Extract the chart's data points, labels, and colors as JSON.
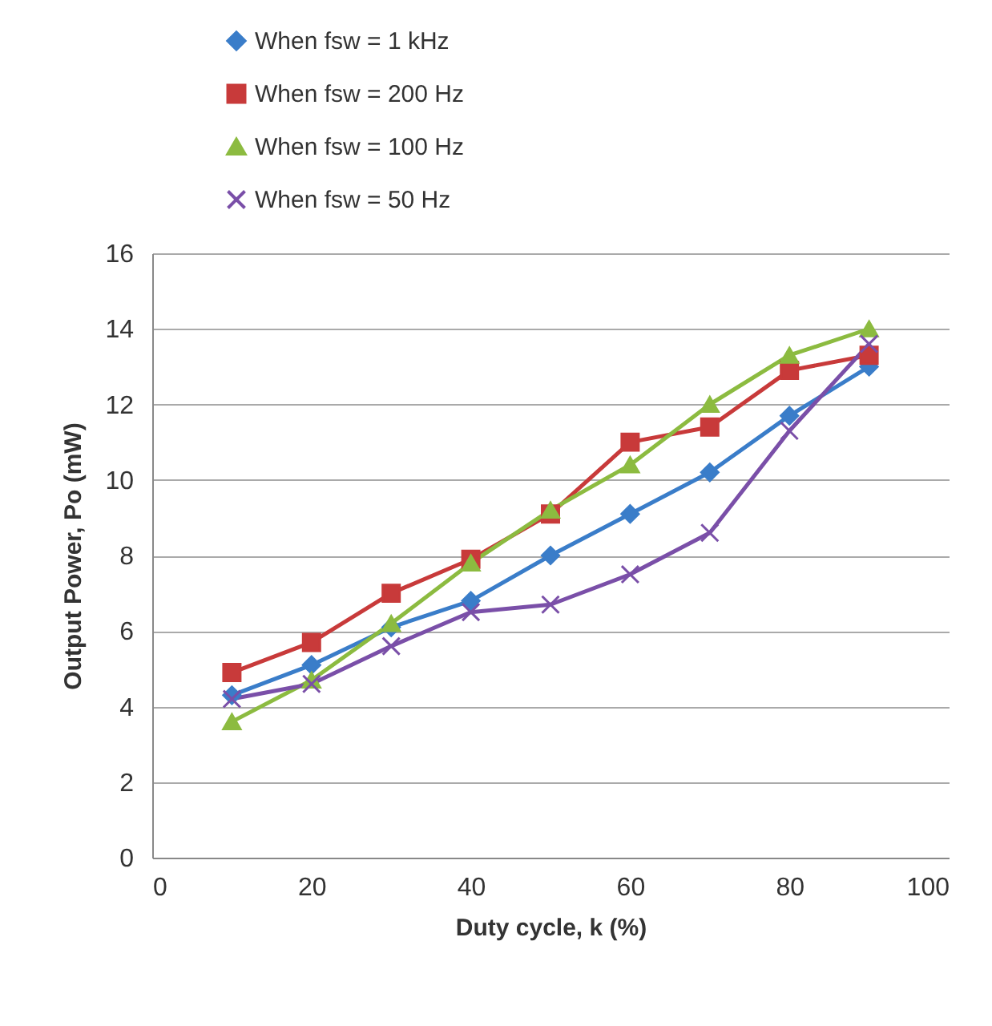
{
  "chart_data": {
    "type": "line",
    "xlabel": "Duty cycle, k (%)",
    "ylabel": "Output Power, Po (mW)",
    "x": [
      10,
      20,
      30,
      40,
      50,
      60,
      70,
      80,
      90
    ],
    "xlim": [
      0,
      100
    ],
    "xticks": [
      0,
      20,
      40,
      60,
      80,
      100
    ],
    "ylim": [
      0,
      16
    ],
    "yticks": [
      0,
      2,
      4,
      6,
      8,
      10,
      12,
      14,
      16
    ],
    "grid": "y",
    "legend": "top left",
    "series": [
      {
        "name": "When fsw = 1 kHz",
        "color": "#3a7dc9",
        "marker": "diamond",
        "values": [
          4.3,
          5.1,
          6.1,
          6.8,
          8.0,
          9.1,
          10.2,
          11.7,
          13.0
        ]
      },
      {
        "name": "When fsw = 200 Hz",
        "color": "#c83a3a",
        "marker": "square",
        "values": [
          4.9,
          5.7,
          7.0,
          7.9,
          9.1,
          11.0,
          11.4,
          12.9,
          13.3
        ]
      },
      {
        "name": "When fsw = 100 Hz",
        "color": "#8cbb40",
        "marker": "triangle",
        "values": [
          3.6,
          4.7,
          6.2,
          7.8,
          9.2,
          10.4,
          12.0,
          13.3,
          14.0
        ]
      },
      {
        "name": "When fsw = 50 Hz",
        "color": "#7a4fa8",
        "marker": "cross",
        "values": [
          4.2,
          4.6,
          5.6,
          6.5,
          6.7,
          7.5,
          8.6,
          11.3,
          13.6
        ]
      }
    ]
  }
}
